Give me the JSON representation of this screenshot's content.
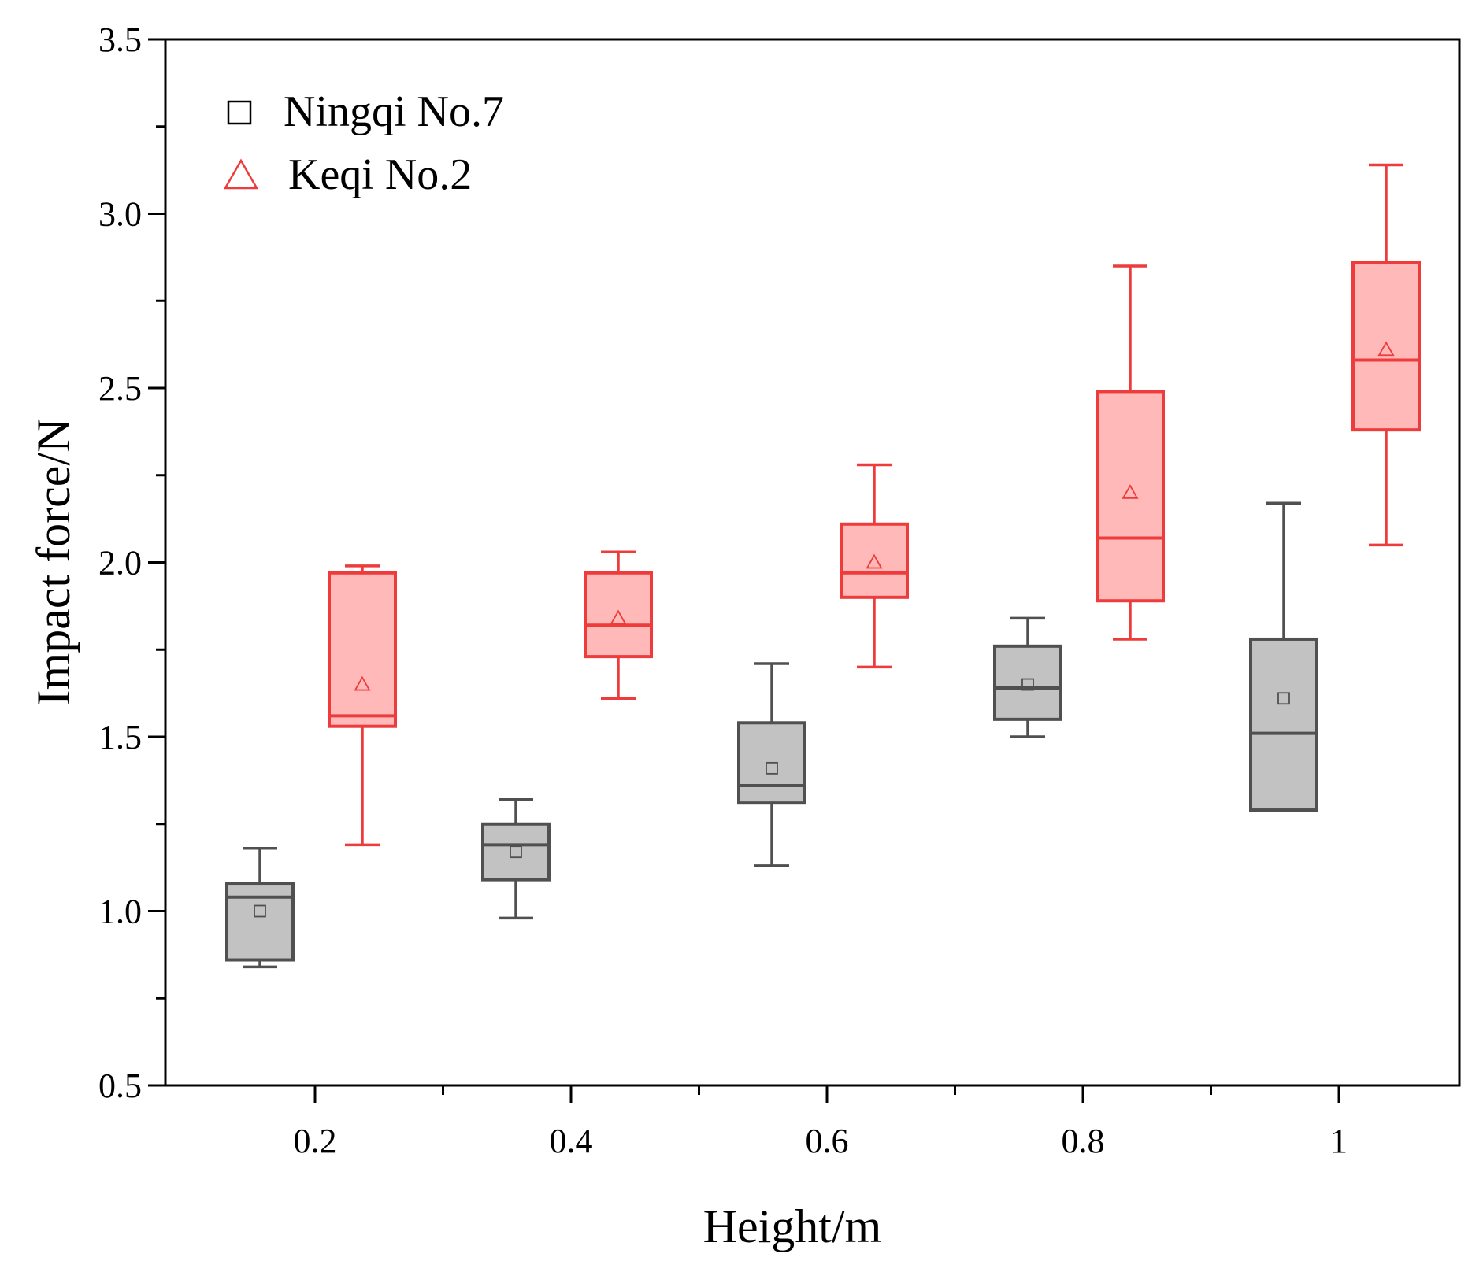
{
  "chart_data": {
    "type": "box",
    "xlabel": "Height/m",
    "ylabel": "Impact force/N",
    "categories": [
      "0.2",
      "0.4",
      "0.6",
      "0.8",
      "1"
    ],
    "ylim": [
      0.5,
      3.5
    ],
    "yticks": [
      "0.5",
      "1.0",
      "1.5",
      "2.0",
      "2.5",
      "3.0",
      "3.5"
    ],
    "grid": false,
    "legend_position": "top-left",
    "series": [
      {
        "name": "Ningqi No.7",
        "marker": "square",
        "stroke_color": "#505050",
        "fill_color": "#c2c2c2",
        "boxes": [
          {
            "category": "0.2",
            "whisker_low": 0.84,
            "q1": 0.86,
            "median": 1.04,
            "q3": 1.08,
            "whisker_high": 1.18,
            "mean": 1.0
          },
          {
            "category": "0.4",
            "whisker_low": 0.98,
            "q1": 1.09,
            "median": 1.19,
            "q3": 1.25,
            "whisker_high": 1.32,
            "mean": 1.17
          },
          {
            "category": "0.6",
            "whisker_low": 1.13,
            "q1": 1.31,
            "median": 1.36,
            "q3": 1.54,
            "whisker_high": 1.71,
            "mean": 1.41
          },
          {
            "category": "0.8",
            "whisker_low": 1.5,
            "q1": 1.55,
            "median": 1.64,
            "q3": 1.76,
            "whisker_high": 1.84,
            "mean": 1.65
          },
          {
            "category": "1",
            "whisker_low": 1.29,
            "q1": 1.29,
            "median": 1.51,
            "q3": 1.78,
            "whisker_high": 2.17,
            "mean": 1.61
          }
        ]
      },
      {
        "name": "Keqi No.2",
        "marker": "triangle",
        "stroke_color": "#ee3b3b",
        "fill_color": "#ffb9b9",
        "boxes": [
          {
            "category": "0.2",
            "whisker_low": 1.19,
            "q1": 1.53,
            "median": 1.56,
            "q3": 1.97,
            "whisker_high": 1.99,
            "mean": 1.65
          },
          {
            "category": "0.4",
            "whisker_low": 1.61,
            "q1": 1.73,
            "median": 1.82,
            "q3": 1.97,
            "whisker_high": 2.03,
            "mean": 1.84
          },
          {
            "category": "0.6",
            "whisker_low": 1.7,
            "q1": 1.9,
            "median": 1.97,
            "q3": 2.11,
            "whisker_high": 2.28,
            "mean": 2.0
          },
          {
            "category": "0.8",
            "whisker_low": 1.78,
            "q1": 1.89,
            "median": 2.07,
            "q3": 2.49,
            "whisker_high": 2.85,
            "mean": 2.2
          },
          {
            "category": "1",
            "whisker_low": 2.05,
            "q1": 2.38,
            "median": 2.58,
            "q3": 2.86,
            "whisker_high": 3.14,
            "mean": 2.61
          }
        ]
      }
    ]
  }
}
